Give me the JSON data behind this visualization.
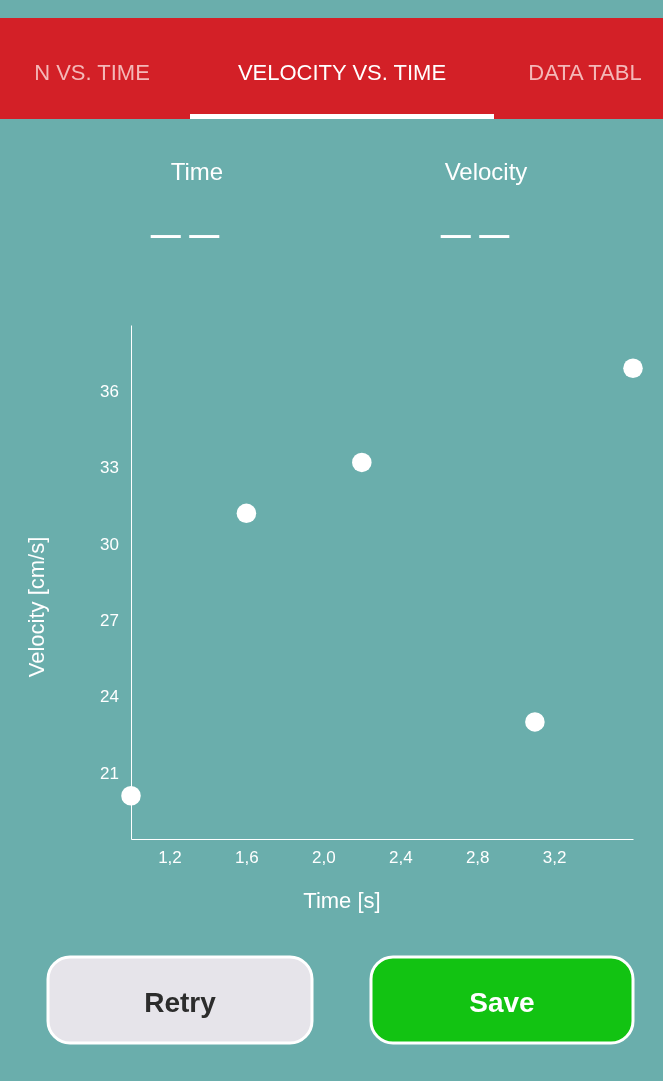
{
  "chart_data": {
    "type": "scatter",
    "xlabel": "Time [s]",
    "ylabel": "Velocity [cm/s]",
    "annotations": [
      "N VS. TIME",
      "VELOCITY VS. TIME",
      "DATA TABL",
      "Time",
      "— —",
      "Velocity",
      "— —",
      "Retry",
      "Save"
    ],
    "xlim": [
      1.0,
      3.61
    ],
    "ylim": [
      18.4,
      38.6
    ],
    "xticks": [
      {
        "value": 1.2,
        "label": "1,2"
      },
      {
        "value": 1.6,
        "label": "1,6"
      },
      {
        "value": 2.0,
        "label": "2,0"
      },
      {
        "value": 2.4,
        "label": "2,4"
      },
      {
        "value": 2.8,
        "label": "2,8"
      },
      {
        "value": 3.2,
        "label": "3,2"
      }
    ],
    "yticks": [
      21,
      24,
      27,
      30,
      33,
      36
    ],
    "grid": false,
    "marker": "circle",
    "series": [
      {
        "color": "#ffffff",
        "x": [
          1.0,
          1.6,
          2.2,
          3.1,
          3.61
        ],
        "values": [
          20.1,
          31.2,
          33.2,
          23.0,
          36.9
        ]
      }
    ]
  }
}
